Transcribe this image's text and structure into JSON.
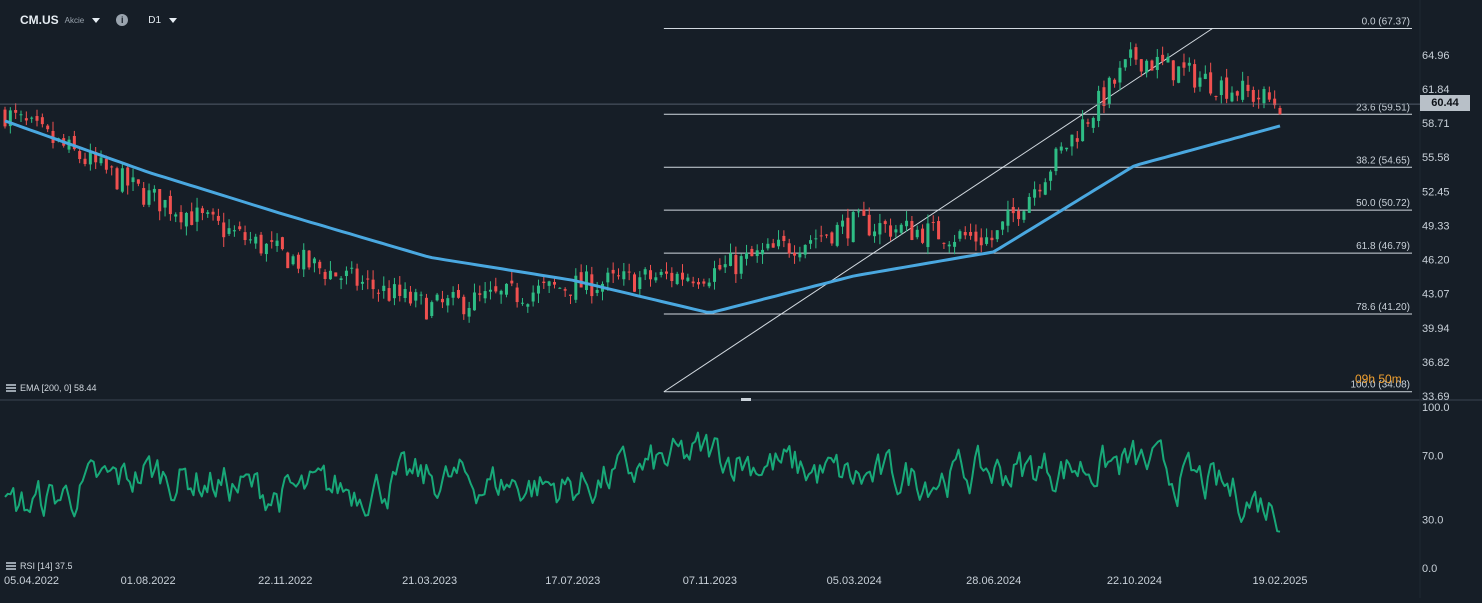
{
  "header": {
    "symbol": "CM.US",
    "symbol_type": "Akcie",
    "info_icon": "i",
    "timeframe": "D1"
  },
  "indicators": {
    "ema_label": "EMA [200, 0] 58.44",
    "rsi_label": "RSI [14] 37.5"
  },
  "last_price": "60.44",
  "countdown": "09h 50m",
  "icons": [
    "dropdown-caret-icon",
    "info-icon",
    "indicator-settings-icon"
  ],
  "colors": {
    "background": "#161e27",
    "bull_candle": "#2ebd85",
    "bear_candle": "#f0504f",
    "ema": "#4aa8e0",
    "rsi": "#18a878",
    "fib_lines": "#e6edf3",
    "price_badge": "#b8c0c8",
    "countdown": "#f0a030"
  },
  "chart_data": [
    {
      "type": "candlestick",
      "title": "CM.US",
      "timeframe": "D1",
      "x_ticks": [
        "05.04.2022",
        "01.08.2022",
        "22.11.2022",
        "21.03.2023",
        "17.07.2023",
        "07.11.2023",
        "05.03.2024",
        "28.06.2024",
        "22.10.2024",
        "19.02.2025"
      ],
      "y_ticks": [
        "64.96",
        "61.84",
        "58.71",
        "55.58",
        "52.45",
        "49.33",
        "46.20",
        "43.07",
        "39.94",
        "36.82",
        "33.69"
      ],
      "ylim": [
        33.69,
        67.6
      ],
      "last_price": 60.44,
      "close_path": {
        "dates": [
          "05.04.2022",
          "01.08.2022",
          "22.11.2022",
          "21.03.2023",
          "17.07.2023",
          "07.11.2023",
          "05.03.2024",
          "28.06.2024",
          "22.10.2024",
          "19.02.2025"
        ],
        "values": [
          59.6,
          52.0,
          46.5,
          41.8,
          43.8,
          45.0,
          49.5,
          48.0,
          64.8,
          60.44
        ]
      },
      "ema": {
        "name": "EMA [200, 0]",
        "last": 58.44,
        "dates": [
          "05.04.2022",
          "01.08.2022",
          "22.11.2022",
          "21.03.2023",
          "17.07.2023",
          "07.11.2023",
          "05.03.2024",
          "28.06.2024",
          "22.10.2024",
          "19.02.2025"
        ],
        "values": [
          58.9,
          54.2,
          50.3,
          46.4,
          44.3,
          41.3,
          44.7,
          46.9,
          54.8,
          58.44
        ]
      },
      "fibonacci": {
        "levels": [
          {
            "label": "0.0 (67.37)",
            "value": 67.37
          },
          {
            "label": "23.6 (59.51)",
            "value": 59.51
          },
          {
            "label": "38.2 (54.65)",
            "value": 54.65
          },
          {
            "label": "50.0 (50.72)",
            "value": 50.72
          },
          {
            "label": "61.8 (46.79)",
            "value": 46.79
          },
          {
            "label": "78.6 (41.20)",
            "value": 41.2
          },
          {
            "label": "100.0 (34.08)",
            "value": 34.08
          }
        ]
      },
      "legend": "top-left",
      "grid": false
    },
    {
      "type": "line",
      "title": "RSI [14]",
      "y_ticks": [
        "100.0",
        "70.0",
        "30.0",
        "0.0"
      ],
      "ylim": [
        0,
        100
      ],
      "last": 37.5,
      "path": {
        "dates": [
          "05.04.2022",
          "01.08.2022",
          "22.11.2022",
          "21.03.2023",
          "17.07.2023",
          "07.11.2023",
          "05.03.2024",
          "28.06.2024",
          "22.10.2024",
          "19.02.2025"
        ],
        "values": [
          35,
          60,
          45,
          55,
          50,
          72,
          55,
          60,
          65,
          37.5
        ]
      },
      "grid": false
    }
  ]
}
